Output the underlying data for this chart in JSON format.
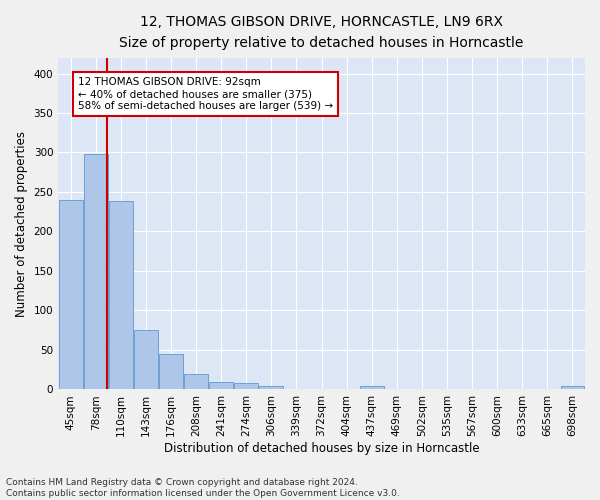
{
  "title": "12, THOMAS GIBSON DRIVE, HORNCASTLE, LN9 6RX",
  "subtitle": "Size of property relative to detached houses in Horncastle",
  "xlabel": "Distribution of detached houses by size in Horncastle",
  "ylabel": "Number of detached properties",
  "bin_labels": [
    "45sqm",
    "78sqm",
    "110sqm",
    "143sqm",
    "176sqm",
    "208sqm",
    "241sqm",
    "274sqm",
    "306sqm",
    "339sqm",
    "372sqm",
    "404sqm",
    "437sqm",
    "469sqm",
    "502sqm",
    "535sqm",
    "567sqm",
    "600sqm",
    "633sqm",
    "665sqm",
    "698sqm"
  ],
  "bar_heights": [
    240,
    298,
    238,
    75,
    45,
    20,
    10,
    8,
    5,
    0,
    0,
    0,
    4,
    0,
    0,
    0,
    0,
    0,
    0,
    0,
    4
  ],
  "bar_color": "#aec6e8",
  "bar_edge_color": "#5b9bd5",
  "vline_color": "#cc0000",
  "vline_x_index": 1.44,
  "annotation_line1": "12 THOMAS GIBSON DRIVE: 92sqm",
  "annotation_line2": "← 40% of detached houses are smaller (375)",
  "annotation_line3": "58% of semi-detached houses are larger (539) →",
  "annotation_box_facecolor": "#ffffff",
  "annotation_box_edgecolor": "#cc0000",
  "ylim": [
    0,
    420
  ],
  "yticks": [
    0,
    50,
    100,
    150,
    200,
    250,
    300,
    350,
    400
  ],
  "background_color": "#dce6f5",
  "grid_color": "#ffffff",
  "fig_facecolor": "#f0f0f0",
  "footer_text": "Contains HM Land Registry data © Crown copyright and database right 2024.\nContains public sector information licensed under the Open Government Licence v3.0.",
  "title_fontsize": 10,
  "subtitle_fontsize": 9,
  "axis_label_fontsize": 8.5,
  "tick_fontsize": 7.5,
  "annotation_fontsize": 7.5,
  "footer_fontsize": 6.5
}
